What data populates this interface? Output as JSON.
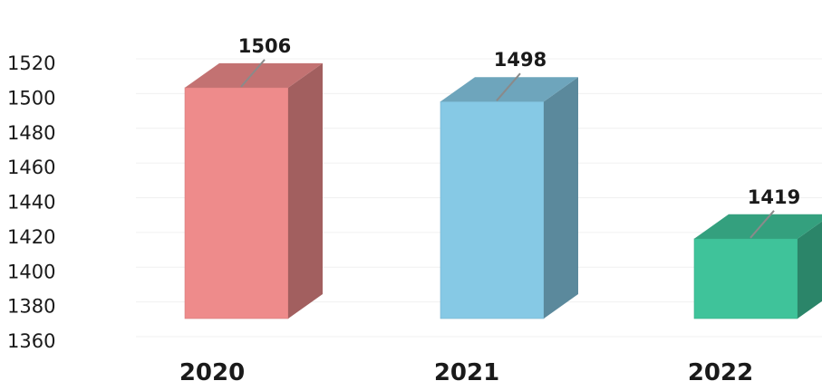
{
  "chart_data": {
    "type": "bar",
    "categories": [
      "2020",
      "2021",
      "2022"
    ],
    "values": [
      1506,
      1498,
      1419
    ],
    "data_labels": [
      "1506",
      "1498",
      "1419"
    ],
    "colors": [
      "#ee8b8b",
      "#86c9e5",
      "#3fc39a"
    ],
    "ylim": [
      1360,
      1520
    ],
    "yticks": [
      1520,
      1500,
      1480,
      1460,
      1440,
      1420,
      1400,
      1380,
      1360
    ],
    "grid": false,
    "style": "3d-column"
  }
}
